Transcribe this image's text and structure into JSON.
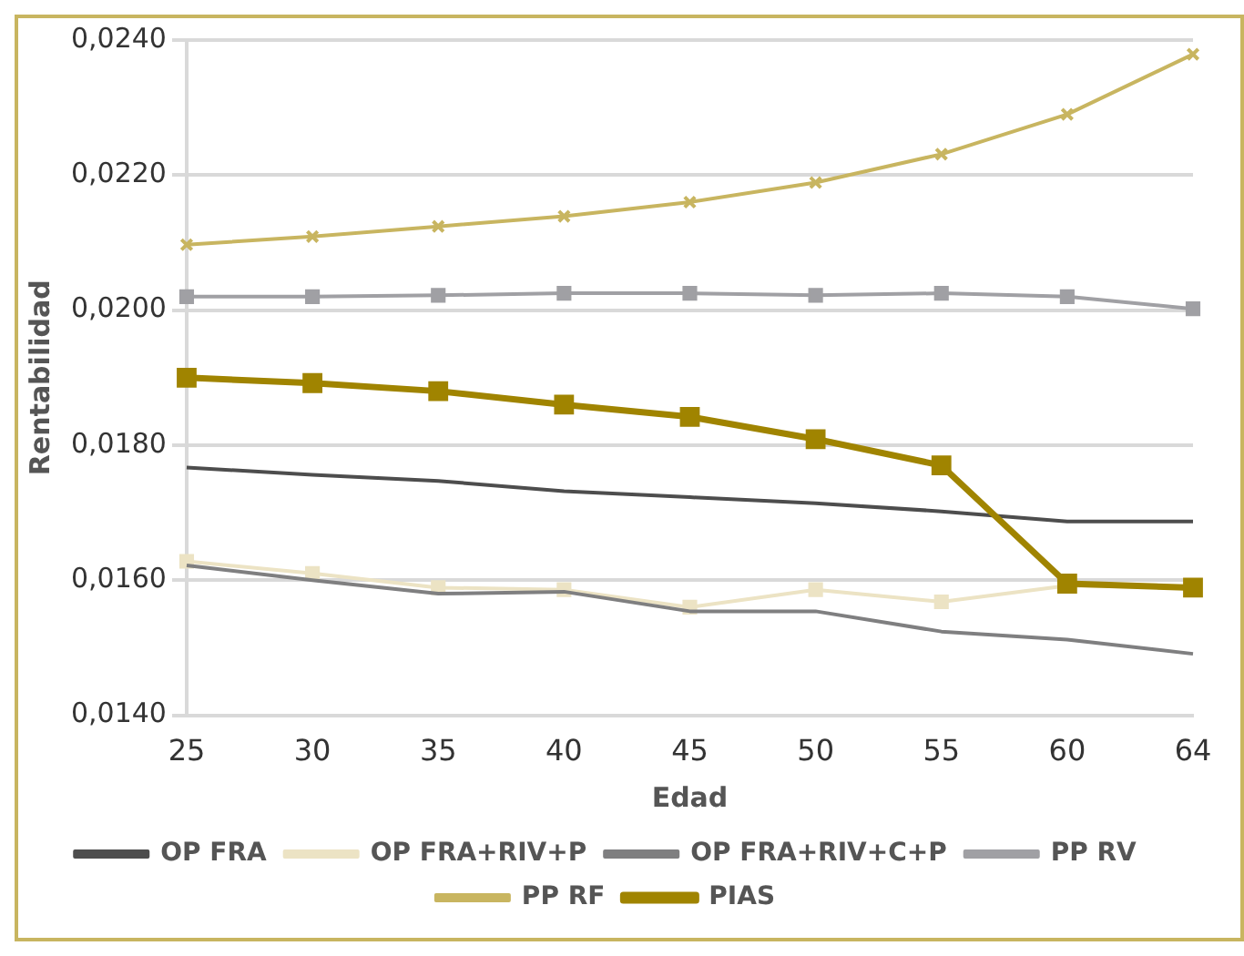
{
  "chart_data": {
    "type": "line",
    "xlabel": "Edad",
    "ylabel": "Rentabilidad",
    "categories": [
      "25",
      "30",
      "35",
      "40",
      "45",
      "50",
      "55",
      "60",
      "64"
    ],
    "ylim": [
      0.014,
      0.024
    ],
    "yticks": [
      {
        "value": 0.014,
        "label": "0,0140"
      },
      {
        "value": 0.016,
        "label": "0,0160"
      },
      {
        "value": 0.018,
        "label": "0,0180"
      },
      {
        "value": 0.02,
        "label": "0,0200"
      },
      {
        "value": 0.022,
        "label": "0,0220"
      },
      {
        "value": 0.024,
        "label": "0,0240"
      }
    ],
    "grid": "y",
    "legend": "bottom",
    "series": [
      {
        "name": "OP FRA",
        "color": "#4d4d4d",
        "marker": "none",
        "values": [
          0.01767,
          0.01756,
          0.01747,
          0.01732,
          0.01723,
          0.01714,
          0.01702,
          0.01687,
          0.01687
        ]
      },
      {
        "name": "OP FRA+RIV+P",
        "color": "#ece3c4",
        "marker": "square",
        "values": [
          0.01628,
          0.0161,
          0.01589,
          0.01586,
          0.0156,
          0.01586,
          0.01568,
          0.01592,
          0.01589
        ]
      },
      {
        "name": "OP FRA+RIV+C+P",
        "color": "#7f7f80",
        "marker": "none",
        "values": [
          0.01622,
          0.016,
          0.0158,
          0.01583,
          0.01554,
          0.01554,
          0.01524,
          0.01512,
          0.01491
        ]
      },
      {
        "name": "PP RV",
        "color": "#a0a0a4",
        "marker": "square",
        "values": [
          0.0202,
          0.0202,
          0.02022,
          0.02025,
          0.02025,
          0.02022,
          0.02025,
          0.0202,
          0.02002
        ]
      },
      {
        "name": "PP RF",
        "color": "#c8b560",
        "marker": "cross",
        "values": [
          0.02097,
          0.02109,
          0.02124,
          0.02139,
          0.0216,
          0.02189,
          0.02231,
          0.0229,
          0.02379
        ]
      },
      {
        "name": "PIAS",
        "color": "#a08400",
        "marker": "square",
        "values": [
          0.019,
          0.01892,
          0.0188,
          0.0186,
          0.01842,
          0.01809,
          0.0177,
          0.01595,
          0.01589
        ]
      }
    ]
  }
}
